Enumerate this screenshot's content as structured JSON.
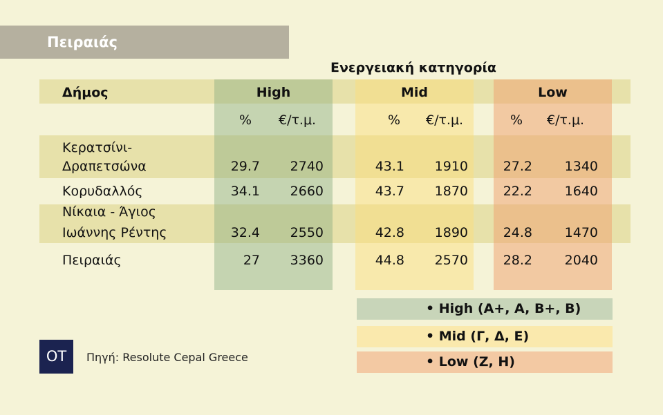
{
  "title": "Πειραιάς",
  "supertitle": "Ενεργειακή κατηγορία",
  "header": {
    "municipality": "Δήμος",
    "high": "High",
    "mid": "Mid",
    "low": "Low",
    "pct": "%",
    "price": "€/τ.μ."
  },
  "rows": [
    {
      "name1": "Κερατσίνι-",
      "name2": "Δραπετσώνα",
      "high_pct": "29.7",
      "high_price": "2740",
      "mid_pct": "43.1",
      "mid_price": "1910",
      "low_pct": "27.2",
      "low_price": "1340"
    },
    {
      "name1": "",
      "name2": "Κορυδαλλός",
      "high_pct": "34.1",
      "high_price": "2660",
      "mid_pct": "43.7",
      "mid_price": "1870",
      "low_pct": "22.2",
      "low_price": "1640"
    },
    {
      "name1": "Νίκαια - Άγιος",
      "name2": "Ιωάννης Ρέντης",
      "high_pct": "32.4",
      "high_price": "2550",
      "mid_pct": "42.8",
      "mid_price": "1890",
      "low_pct": "24.8",
      "low_price": "1470"
    },
    {
      "name1": "",
      "name2": "Πειραιάς",
      "high_pct": "27",
      "high_price": "3360",
      "mid_pct": "44.8",
      "mid_price": "2570",
      "low_pct": "28.2",
      "low_price": "2040"
    }
  ],
  "legend": [
    "•  High (A+, A, B+, B)",
    "•  Mid (Γ, Δ, Ε)",
    "•  Low (Ζ, Η)"
  ],
  "logo": "OT",
  "source": "Πηγή: Resolute Cepal Greece"
}
